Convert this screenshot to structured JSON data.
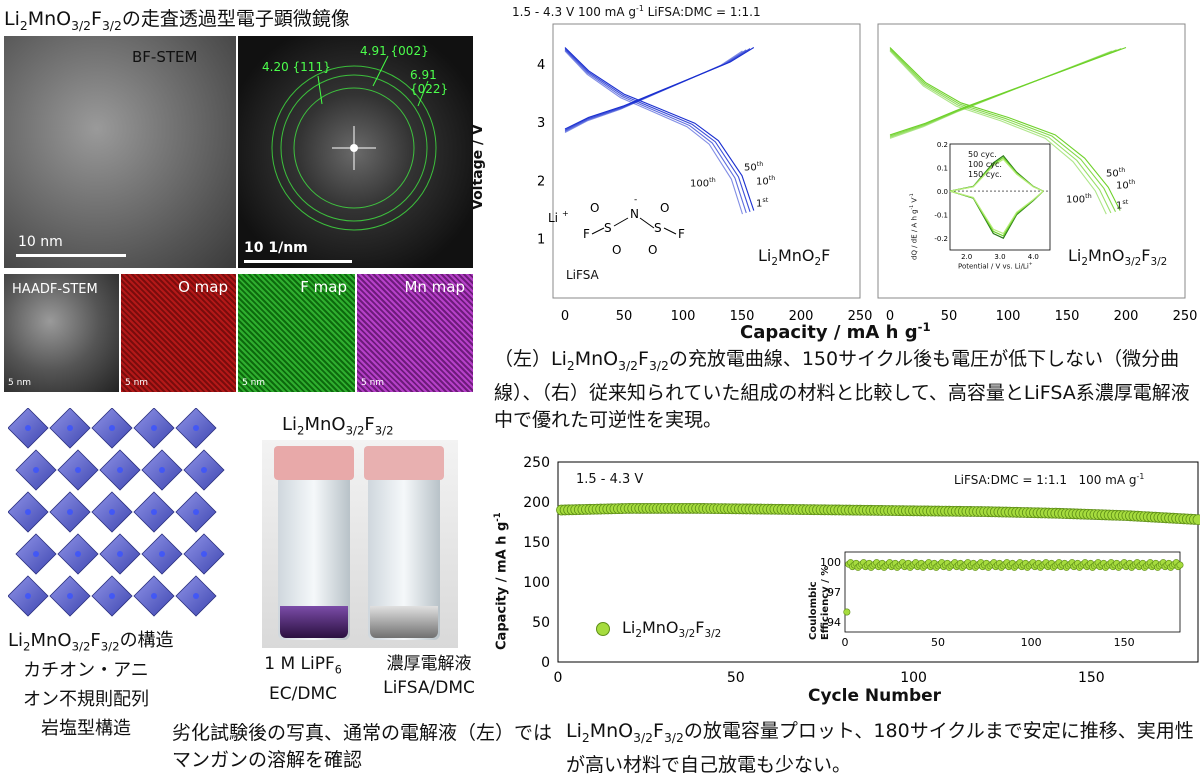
{
  "top_left": {
    "title": "Li<sub>2</sub>MnO<sub>3/2</sub>F<sub>3/2</sub>の走査透過型電子顕微鏡像",
    "bf_stem": "BF-STEM",
    "scale_10nm": "10 nm",
    "fft_scale": "10 1/nm",
    "fft_labels": [
      "4.20 {111}",
      "4.91 {002}",
      "6.91 {022}"
    ],
    "maps": [
      "HAADF-STEM",
      "O map",
      "F map",
      "Mn map"
    ],
    "map_scale": "5 nm"
  },
  "top_right": {
    "header": "1.5 - 4.3 V 100 mA g<sup>-1</sup> LiFSA:DMC = 1:1.1",
    "ylabel": "Voltage  /  V",
    "xlabel": "Capacity  /  mA h g<sup>-1</sup>",
    "left_label": "Li<sub>2</sub>MnO<sub>2</sub>F",
    "right_label": "Li<sub>2</sub>MnO<sub>3/2</sub>F<sub>3/2</sub>",
    "lifsa": "LiFSA",
    "cycle_labels_left": [
      "50<sup>th</sup>",
      "10<sup>th</sup>",
      "100<sup>th</sup>",
      "1<sup>st</sup>"
    ],
    "cycle_labels_right": [
      "50<sup>th</sup>",
      "10<sup>th</sup>",
      "100<sup>th</sup>",
      "1<sup>st</sup>"
    ],
    "inset_legend": [
      "50 cyc.",
      "100 cyc.",
      "150 cyc."
    ],
    "inset_ylabel": "dQ / dE  /  A h g<sup>-1</sup> V<sup>-1</sup>",
    "inset_xlabel": "Potential  /  V  vs. Li/Li<sup>+</sup>",
    "caption": "（左）Li<sub>2</sub>MnO<sub>3/2</sub>F<sub>3/2</sub>の充放電曲線、150サイクル後も電圧が低下しない（微分曲線）、（右）従来知られていた組成の材料と比較して、高容量とLiFSA系濃厚電解液中で優れた可逆性を実現。"
  },
  "bottom_left": {
    "structure_caption": "Li<sub>2</sub>MnO<sub>3/2</sub>F<sub>3/2</sub>の構造",
    "structure_desc": "カチオン・アニオン不規則配列岩塩型構造",
    "photo_title": "Li<sub>2</sub>MnO<sub>3/2</sub>F<sub>3/2</sub>",
    "vial1": "1 M LiPF<sub>6</sub><br>EC/DMC",
    "vial2": "濃厚電解液<br>LiFSA/DMC",
    "photo_caption": "劣化試験後の写真、通常の電解液（左）ではマンガンの溶解を確認"
  },
  "bottom_right": {
    "voltage": "1.5 - 4.3 V",
    "conditions": "LiFSA:DMC = 1:1.1   100 mA g<sup>-1</sup>",
    "ylabel": "Capacity  /  mA h g<sup>-1</sup>",
    "xlabel": "Cycle Number",
    "legend": "Li<sub>2</sub>MnO<sub>3/2</sub>F<sub>3/2</sub>",
    "inset_ylabel": "Coulombic Efficiency / %",
    "caption": "Li<sub>2</sub>MnO<sub>3/2</sub>F<sub>3/2</sub>の放電容量プロット、180サイクルまで安定に推移、実用性が高い材料で自己放電も少ない。"
  },
  "chart_data": [
    {
      "type": "line",
      "title": "",
      "xlabel": "Capacity / mA h g-1",
      "ylabel": "Voltage / V",
      "xlim": [
        0,
        250
      ],
      "ylim": [
        0,
        4.6
      ],
      "series": [
        {
          "name": "Li2MnO2F charge",
          "x": [
            0,
            20,
            50,
            80,
            110,
            140,
            160
          ],
          "y": [
            2.9,
            3.1,
            3.3,
            3.55,
            3.8,
            4.05,
            4.3
          ]
        },
        {
          "name": "Li2MnO2F discharge",
          "x": [
            0,
            20,
            50,
            80,
            110,
            130,
            150,
            160
          ],
          "y": [
            4.3,
            3.9,
            3.5,
            3.25,
            3.0,
            2.7,
            2.1,
            1.5
          ]
        },
        {
          "name": "Li2MnO3/2F3/2 charge",
          "x": [
            0,
            30,
            60,
            100,
            140,
            180,
            200
          ],
          "y": [
            2.8,
            3.0,
            3.25,
            3.55,
            3.85,
            4.15,
            4.3
          ]
        },
        {
          "name": "Li2MnO3/2F3/2 discharge",
          "x": [
            0,
            30,
            60,
            100,
            140,
            165,
            185,
            195
          ],
          "y": [
            4.3,
            3.7,
            3.35,
            3.1,
            2.8,
            2.4,
            1.9,
            1.5
          ]
        }
      ]
    },
    {
      "type": "line",
      "title": "",
      "xlabel": "Potential / V vs. Li/Li+",
      "ylabel": "dQ / dE / A h g-1 V-1",
      "xlim": [
        1.5,
        4.5
      ],
      "ylim": [
        -0.25,
        0.2
      ],
      "series": [
        {
          "name": "50 cyc.",
          "x": [
            1.5,
            2.2,
            2.8,
            3.1,
            3.5,
            4.0,
            4.3
          ],
          "y": [
            0.0,
            0.02,
            0.12,
            0.15,
            0.08,
            0.02,
            0.0
          ]
        },
        {
          "name": "100 cyc.",
          "x": [
            1.5,
            2.2,
            2.8,
            3.1,
            3.5,
            4.0,
            4.3
          ],
          "y": [
            0.0,
            -0.03,
            -0.18,
            -0.2,
            -0.1,
            -0.04,
            0.0
          ]
        }
      ]
    },
    {
      "type": "scatter",
      "title": "",
      "xlabel": "Cycle Number",
      "ylabel": "Capacity / mA h g-1",
      "xlim": [
        0,
        180
      ],
      "ylim": [
        0,
        250
      ],
      "series": [
        {
          "name": "Li2MnO3/2F3/2",
          "x": [
            1,
            20,
            40,
            60,
            80,
            100,
            120,
            140,
            160,
            180
          ],
          "y": [
            190,
            192,
            192,
            191,
            190,
            189,
            188,
            186,
            183,
            178
          ]
        }
      ]
    },
    {
      "type": "scatter",
      "title": "",
      "xlabel": "",
      "ylabel": "Coulombic Efficiency / %",
      "xlim": [
        0,
        180
      ],
      "ylim": [
        93,
        101
      ],
      "series": [
        {
          "name": "CE",
          "x": [
            1,
            2,
            20,
            60,
            100,
            140,
            180
          ],
          "y": [
            95,
            99.5,
            99.8,
            99.7,
            99.8,
            99.6,
            99.7
          ]
        }
      ]
    }
  ]
}
